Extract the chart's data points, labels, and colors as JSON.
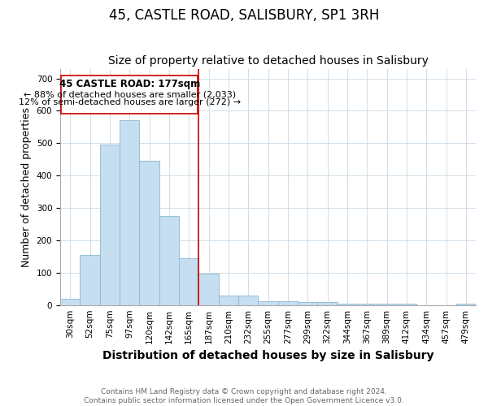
{
  "title": "45, CASTLE ROAD, SALISBURY, SP1 3RH",
  "subtitle": "Size of property relative to detached houses in Salisbury",
  "xlabel": "Distribution of detached houses by size in Salisbury",
  "ylabel": "Number of detached properties",
  "bar_labels": [
    "30sqm",
    "52sqm",
    "75sqm",
    "97sqm",
    "120sqm",
    "142sqm",
    "165sqm",
    "187sqm",
    "210sqm",
    "232sqm",
    "255sqm",
    "277sqm",
    "299sqm",
    "322sqm",
    "344sqm",
    "367sqm",
    "389sqm",
    "412sqm",
    "434sqm",
    "457sqm",
    "479sqm"
  ],
  "bar_values": [
    20,
    155,
    495,
    570,
    445,
    275,
    145,
    97,
    30,
    30,
    12,
    12,
    10,
    10,
    5,
    5,
    3,
    3,
    0,
    0,
    5
  ],
  "bar_color": "#c5dff0",
  "bar_edge_color": "#8ab8d4",
  "marker_bar_index": 7,
  "marker_color": "#cc0000",
  "marker_label": "45 CASTLE ROAD: 177sqm",
  "annotation_line1": "← 88% of detached houses are smaller (2,033)",
  "annotation_line2": "12% of semi-detached houses are larger (272) →",
  "box_edge_color": "#cc0000",
  "ylim": [
    0,
    730
  ],
  "yticks": [
    0,
    100,
    200,
    300,
    400,
    500,
    600,
    700
  ],
  "footer1": "Contains HM Land Registry data © Crown copyright and database right 2024.",
  "footer2": "Contains public sector information licensed under the Open Government Licence v3.0.",
  "title_fontsize": 12,
  "subtitle_fontsize": 10,
  "axis_label_fontsize": 9,
  "tick_fontsize": 7.5,
  "annotation_fontsize": 8.5
}
